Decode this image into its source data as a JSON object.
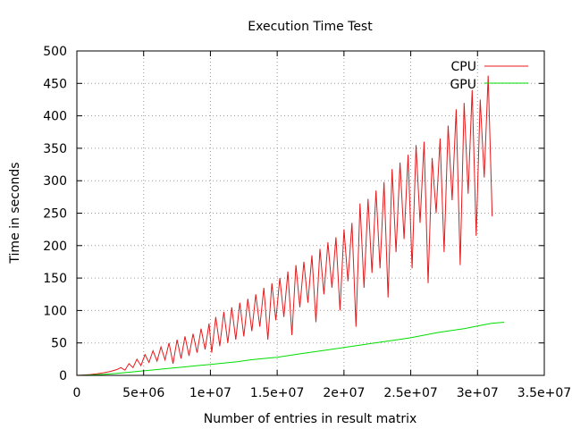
{
  "chart_data": {
    "type": "line",
    "title": "Execution Time Test",
    "xlabel": "Number of entries in result matrix",
    "ylabel": "Time in seconds",
    "xlim": [
      0,
      35000000
    ],
    "ylim": [
      0,
      500
    ],
    "x_ticks": [
      0,
      5000000,
      10000000,
      15000000,
      20000000,
      25000000,
      30000000,
      35000000
    ],
    "x_tick_labels": [
      "0",
      "5e+06",
      "1e+07",
      "1.5e+07",
      "2e+07",
      "2.5e+07",
      "3e+07",
      "3.5e+07"
    ],
    "y_ticks": [
      0,
      50,
      100,
      150,
      200,
      250,
      300,
      350,
      400,
      450,
      500
    ],
    "y_tick_labels": [
      "0",
      "50",
      "100",
      "150",
      "200",
      "250",
      "300",
      "350",
      "400",
      "450",
      "500"
    ],
    "grid": true,
    "legend_position": "top-right",
    "series": [
      {
        "name": "CPU",
        "color": "#e41a1c",
        "points": [
          [
            0,
            0
          ],
          [
            500000,
            0.5
          ],
          [
            1000000,
            1.2
          ],
          [
            1500000,
            2.5
          ],
          [
            2000000,
            4
          ],
          [
            2500000,
            6
          ],
          [
            3000000,
            9
          ],
          [
            3300000,
            12
          ],
          [
            3600000,
            8
          ],
          [
            3900000,
            18
          ],
          [
            4200000,
            12
          ],
          [
            4500000,
            25
          ],
          [
            4800000,
            15
          ],
          [
            5100000,
            32
          ],
          [
            5400000,
            20
          ],
          [
            5700000,
            38
          ],
          [
            6000000,
            22
          ],
          [
            6300000,
            44
          ],
          [
            6600000,
            24
          ],
          [
            6900000,
            50
          ],
          [
            7200000,
            18
          ],
          [
            7500000,
            55
          ],
          [
            7800000,
            26
          ],
          [
            8100000,
            60
          ],
          [
            8400000,
            30
          ],
          [
            8700000,
            64
          ],
          [
            9000000,
            35
          ],
          [
            9300000,
            72
          ],
          [
            9600000,
            40
          ],
          [
            9900000,
            80
          ],
          [
            10100000,
            35
          ],
          [
            10400000,
            90
          ],
          [
            10700000,
            45
          ],
          [
            11000000,
            98
          ],
          [
            11300000,
            50
          ],
          [
            11600000,
            105
          ],
          [
            11900000,
            55
          ],
          [
            12200000,
            112
          ],
          [
            12500000,
            60
          ],
          [
            12800000,
            118
          ],
          [
            13100000,
            68
          ],
          [
            13400000,
            125
          ],
          [
            13700000,
            75
          ],
          [
            14000000,
            135
          ],
          [
            14300000,
            55
          ],
          [
            14600000,
            142
          ],
          [
            14900000,
            85
          ],
          [
            15200000,
            150
          ],
          [
            15500000,
            90
          ],
          [
            15800000,
            160
          ],
          [
            16100000,
            62
          ],
          [
            16400000,
            170
          ],
          [
            16700000,
            105
          ],
          [
            17000000,
            175
          ],
          [
            17300000,
            112
          ],
          [
            17600000,
            185
          ],
          [
            17900000,
            82
          ],
          [
            18200000,
            195
          ],
          [
            18500000,
            125
          ],
          [
            18800000,
            205
          ],
          [
            19100000,
            135
          ],
          [
            19400000,
            213
          ],
          [
            19700000,
            100
          ],
          [
            20000000,
            225
          ],
          [
            20300000,
            145
          ],
          [
            20600000,
            235
          ],
          [
            20900000,
            75
          ],
          [
            21200000,
            265
          ],
          [
            21500000,
            135
          ],
          [
            21800000,
            272
          ],
          [
            22100000,
            158
          ],
          [
            22400000,
            285
          ],
          [
            22700000,
            165
          ],
          [
            23000000,
            298
          ],
          [
            23300000,
            120
          ],
          [
            23600000,
            318
          ],
          [
            23900000,
            190
          ],
          [
            24200000,
            328
          ],
          [
            24500000,
            210
          ],
          [
            24800000,
            340
          ],
          [
            25100000,
            165
          ],
          [
            25400000,
            355
          ],
          [
            25700000,
            235
          ],
          [
            26000000,
            360
          ],
          [
            26300000,
            142
          ],
          [
            26600000,
            335
          ],
          [
            26900000,
            250
          ],
          [
            27200000,
            365
          ],
          [
            27500000,
            190
          ],
          [
            27800000,
            385
          ],
          [
            28100000,
            270
          ],
          [
            28400000,
            410
          ],
          [
            28700000,
            170
          ],
          [
            29000000,
            420
          ],
          [
            29300000,
            280
          ],
          [
            29600000,
            440
          ],
          [
            29900000,
            215
          ],
          [
            30200000,
            425
          ],
          [
            30500000,
            305
          ],
          [
            30800000,
            462
          ],
          [
            31100000,
            245
          ]
        ]
      },
      {
        "name": "GPU",
        "color": "#00dd00",
        "points": [
          [
            0,
            0
          ],
          [
            1000000,
            0.5
          ],
          [
            2000000,
            1.5
          ],
          [
            3000000,
            3
          ],
          [
            4000000,
            5
          ],
          [
            5000000,
            7
          ],
          [
            6000000,
            9
          ],
          [
            7000000,
            11
          ],
          [
            8000000,
            13
          ],
          [
            9000000,
            15
          ],
          [
            10000000,
            17
          ],
          [
            11000000,
            19
          ],
          [
            12000000,
            21
          ],
          [
            13000000,
            24
          ],
          [
            14000000,
            26
          ],
          [
            15000000,
            28
          ],
          [
            16000000,
            31
          ],
          [
            17000000,
            34
          ],
          [
            18000000,
            37
          ],
          [
            19000000,
            40
          ],
          [
            20000000,
            43
          ],
          [
            21000000,
            46
          ],
          [
            22000000,
            49
          ],
          [
            23000000,
            52
          ],
          [
            24000000,
            55
          ],
          [
            25000000,
            58
          ],
          [
            26000000,
            62
          ],
          [
            27000000,
            66
          ],
          [
            28000000,
            69
          ],
          [
            29000000,
            72
          ],
          [
            30000000,
            76
          ],
          [
            31000000,
            80
          ],
          [
            32000000,
            82
          ]
        ]
      }
    ]
  }
}
